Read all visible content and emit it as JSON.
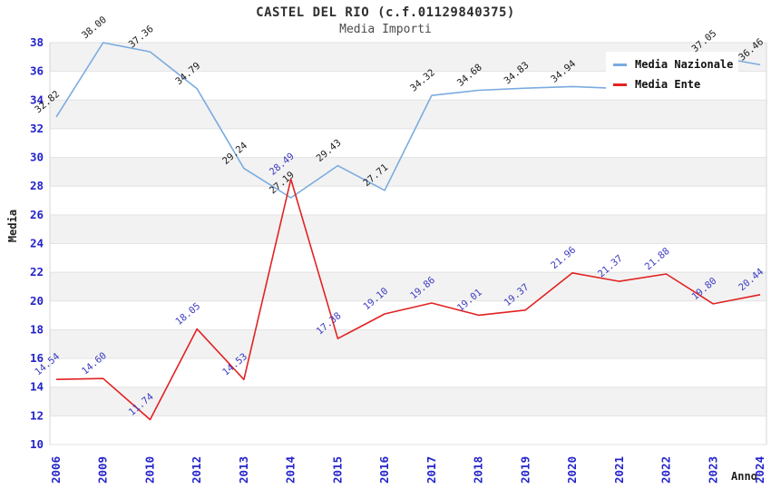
{
  "title": "CASTEL DEL RIO (c.f.01129840375)",
  "subtitle": "Media Importi",
  "axes": {
    "y_label": "Media",
    "x_label": "Anno",
    "tick_color": "#2323cc",
    "y_ticks": [
      10,
      12,
      14,
      16,
      18,
      20,
      22,
      24,
      26,
      28,
      30,
      32,
      34,
      36,
      38
    ]
  },
  "legend": {
    "items": [
      {
        "label": "Media Nazionale",
        "color": "#7aabe0"
      },
      {
        "label": "Media Ente",
        "color": "#e22222"
      }
    ]
  },
  "chart_data": {
    "type": "line",
    "title": "CASTEL DEL RIO (c.f.01129840375)",
    "subtitle": "Media Importi",
    "xlabel": "Anno",
    "ylabel": "Media",
    "ylim": [
      10,
      38
    ],
    "ytick_step": 2,
    "grid": "horizontal-bands",
    "legend_position": "top-right",
    "categories": [
      "2006",
      "2009",
      "2010",
      "2012",
      "2013",
      "2014",
      "2015",
      "2016",
      "2017",
      "2018",
      "2019",
      "2020",
      "2021",
      "2022",
      "2023",
      "2024"
    ],
    "series": [
      {
        "name": "Media Nazionale",
        "color": "#7aabe0",
        "label_color": "#1a1a1a",
        "values": [
          32.82,
          38.0,
          37.36,
          34.79,
          29.24,
          27.19,
          29.43,
          27.71,
          34.32,
          34.68,
          34.83,
          34.94,
          34.8,
          35.9,
          37.05,
          36.46
        ],
        "labels": [
          "32.82",
          "38.00",
          "37.36",
          "34.79",
          "29.24",
          "27.19",
          "29.43",
          "27.71",
          "34.32",
          "34.68",
          "34.83",
          "34.94",
          null,
          null,
          "37.05",
          "36.46"
        ]
      },
      {
        "name": "Media Ente",
        "color": "#e22222",
        "label_color": "#3a3ac0",
        "values": [
          14.54,
          14.6,
          11.74,
          18.05,
          14.53,
          28.49,
          17.38,
          19.1,
          19.86,
          19.01,
          19.37,
          21.96,
          21.37,
          21.88,
          19.8,
          20.44
        ],
        "labels": [
          "14.54",
          "14.60",
          "11.74",
          "18.05",
          "14.53",
          "28.49",
          "17.38",
          "19.10",
          "19.86",
          "19.01",
          "19.37",
          "21.96",
          "21.37",
          "21.88",
          "19.80",
          "20.44"
        ]
      }
    ]
  },
  "style": {
    "band_color": "#f2f2f2",
    "gridline_color": "#e3e3e3",
    "plot_edge_color": "#d5d5d5"
  }
}
